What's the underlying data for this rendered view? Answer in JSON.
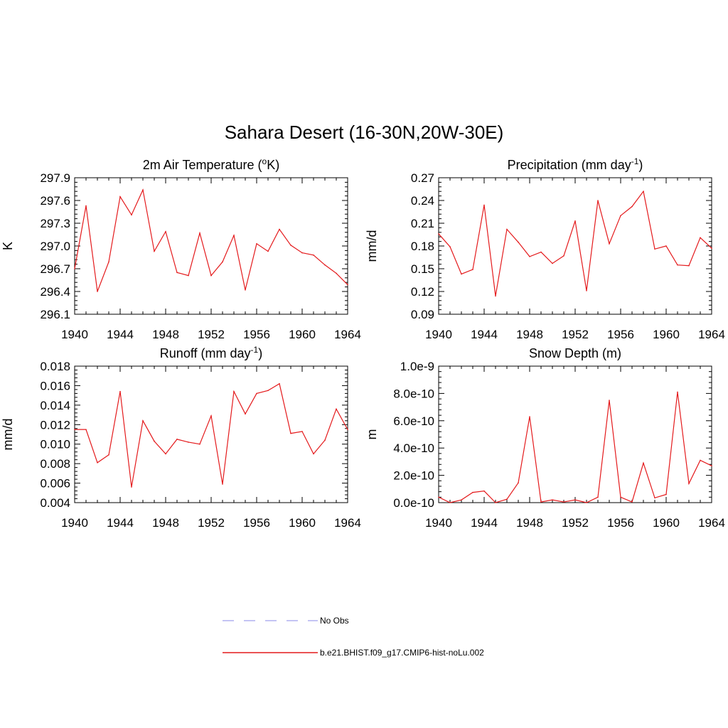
{
  "figure": {
    "title": "Sahara Desert (16-30N,20W-30E)"
  },
  "legend": {
    "placement": "bottom-center",
    "entries": [
      {
        "label": "No Obs",
        "color": "#b0b0f0",
        "style": "dashed"
      },
      {
        "label": "b.e21.BHIST.f09_g17.CMIP6-hist-noLu.002",
        "color": "#e41a1c",
        "style": "solid"
      }
    ]
  },
  "chart_data": [
    {
      "type": "line",
      "title": "2m Air Temperature",
      "title_unit_main": "K",
      "title_unit_sup": "o",
      "ylabel": "K",
      "xlim": [
        1940,
        1964
      ],
      "ylim": [
        296.1,
        297.9
      ],
      "xticks": [
        "1940",
        "1944",
        "1948",
        "1952",
        "1956",
        "1960",
        "1964"
      ],
      "yticks": [
        "296.1",
        "296.4",
        "296.7",
        "297.0",
        "297.3",
        "297.6",
        "297.9"
      ],
      "color": "#e41a1c",
      "grid": false,
      "series": [
        {
          "x": [
            1940,
            1941,
            1942,
            1943,
            1944,
            1945,
            1946,
            1947,
            1948,
            1949,
            1950,
            1951,
            1952,
            1953,
            1954,
            1955,
            1956,
            1957,
            1958,
            1959,
            1960,
            1961,
            1962,
            1963,
            1964
          ],
          "values": [
            296.7,
            297.53,
            296.4,
            296.79,
            297.65,
            297.41,
            297.74,
            296.93,
            297.19,
            296.65,
            296.61,
            297.17,
            296.61,
            296.79,
            297.14,
            296.42,
            297.03,
            296.93,
            297.22,
            297.01,
            296.91,
            296.88,
            296.75,
            296.64,
            296.49
          ]
        }
      ]
    },
    {
      "type": "line",
      "title": "Precipitation",
      "title_unit_main": "mm day",
      "title_unit_sup": "-1",
      "ylabel": "mm/d",
      "xlim": [
        1940,
        1964
      ],
      "ylim": [
        0.09,
        0.27
      ],
      "xticks": [
        "1940",
        "1944",
        "1948",
        "1952",
        "1956",
        "1960",
        "1964"
      ],
      "yticks": [
        "0.09",
        "0.12",
        "0.15",
        "0.18",
        "0.21",
        "0.24",
        "0.27"
      ],
      "color": "#e41a1c",
      "grid": false,
      "series": [
        {
          "x": [
            1940,
            1941,
            1942,
            1943,
            1944,
            1945,
            1946,
            1947,
            1948,
            1949,
            1950,
            1951,
            1952,
            1953,
            1954,
            1955,
            1956,
            1957,
            1958,
            1959,
            1960,
            1961,
            1962,
            1963,
            1964
          ],
          "values": [
            0.196,
            0.179,
            0.143,
            0.149,
            0.234,
            0.114,
            0.202,
            0.185,
            0.166,
            0.172,
            0.157,
            0.167,
            0.213,
            0.121,
            0.24,
            0.183,
            0.22,
            0.232,
            0.252,
            0.176,
            0.18,
            0.155,
            0.154,
            0.191,
            0.177
          ]
        }
      ]
    },
    {
      "type": "line",
      "title": "Runoff",
      "title_unit_main": "mm day",
      "title_unit_sup": "-1",
      "ylabel": "mm/d",
      "xlim": [
        1940,
        1964
      ],
      "ylim": [
        0.004,
        0.018
      ],
      "xticks": [
        "1940",
        "1944",
        "1948",
        "1952",
        "1956",
        "1960",
        "1964"
      ],
      "yticks": [
        "0.004",
        "0.006",
        "0.008",
        "0.010",
        "0.012",
        "0.014",
        "0.016",
        "0.018"
      ],
      "color": "#e41a1c",
      "grid": false,
      "series": [
        {
          "x": [
            1940,
            1941,
            1942,
            1943,
            1944,
            1945,
            1946,
            1947,
            1948,
            1949,
            1950,
            1951,
            1952,
            1953,
            1954,
            1955,
            1956,
            1957,
            1958,
            1959,
            1960,
            1961,
            1962,
            1963,
            1964
          ],
          "values": [
            0.0115,
            0.0115,
            0.0081,
            0.0089,
            0.0154,
            0.0056,
            0.0124,
            0.0103,
            0.009,
            0.0105,
            0.0102,
            0.01,
            0.0129,
            0.0059,
            0.0154,
            0.0131,
            0.0152,
            0.0155,
            0.0162,
            0.0111,
            0.0113,
            0.009,
            0.0104,
            0.0136,
            0.0115
          ]
        }
      ]
    },
    {
      "type": "line",
      "title": "Snow Depth (m)",
      "title_unit_main": "",
      "title_unit_sup": "",
      "ylabel": "m",
      "xlim": [
        1940,
        1964
      ],
      "ylim": [
        0,
        1e-09
      ],
      "xticks": [
        "1940",
        "1944",
        "1948",
        "1952",
        "1956",
        "1960",
        "1964"
      ],
      "yticks": [
        "0.0e-10",
        "2.0e-10",
        "4.0e-10",
        "6.0e-10",
        "8.0e-10",
        "1.0e-9"
      ],
      "color": "#e41a1c",
      "grid": false,
      "series": [
        {
          "x": [
            1940,
            1941,
            1942,
            1943,
            1944,
            1945,
            1946,
            1947,
            1948,
            1949,
            1950,
            1951,
            1952,
            1953,
            1954,
            1955,
            1956,
            1957,
            1958,
            1959,
            1960,
            1961,
            1962,
            1963,
            1964
          ],
          "values": [
            4e-11,
            0,
            2e-11,
            7.5e-11,
            8.5e-11,
            0,
            2.5e-11,
            1.45e-10,
            6.3e-10,
            5e-12,
            2e-11,
            5e-12,
            2e-11,
            0,
            4e-11,
            7.5e-10,
            4e-11,
            5e-12,
            2.9e-10,
            3.5e-11,
            6e-11,
            8.1e-10,
            1.4e-10,
            3.1e-10,
            2.7e-10
          ]
        }
      ]
    }
  ]
}
